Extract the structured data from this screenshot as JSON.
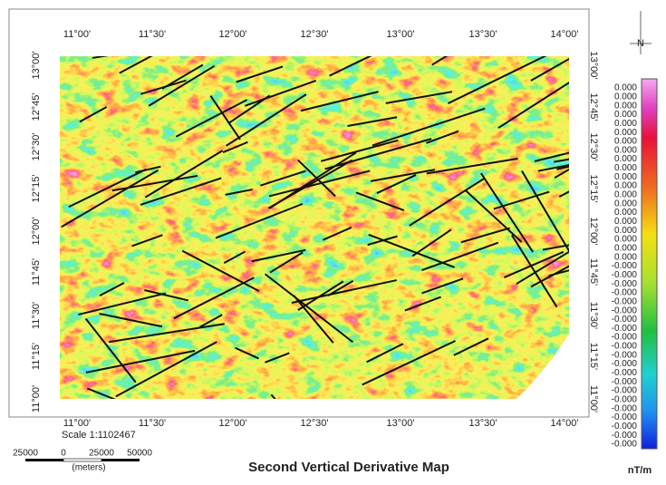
{
  "map": {
    "top_labels": [
      "11°00'",
      "11°30'",
      "12°00'",
      "12°30'",
      "13°00'",
      "13°30'",
      "14°00'"
    ],
    "bottom_labels": [
      "11°00'",
      "11°30'",
      "12°00'",
      "12°30'",
      "13°00'",
      "13°30'",
      "14°00'"
    ],
    "left_labels": [
      "13°00'",
      "12°45'",
      "12°30'",
      "12°15'",
      "12°00'",
      "11°45'",
      "11°30'",
      "11°15'",
      "11°00'"
    ],
    "right_labels": [
      "13°00'",
      "12°45'",
      "12°30'",
      "12°15'",
      "12°00'",
      "11°45'",
      "11°30'",
      "11°15'",
      "11°00'"
    ],
    "scale_text": "Scale 1:1102467",
    "scale_bar": {
      "labels": [
        "25000",
        "0",
        "25000",
        "50000"
      ],
      "unit": "(meters)"
    },
    "title": "Second Vertical Derivative Map",
    "north": "N",
    "legend": {
      "labels": [
        "0.000",
        "0.000",
        "0.000",
        "0.000",
        "0.000",
        "0.000",
        "0.000",
        "0.000",
        "0.000",
        "0.000",
        "0.000",
        "0.000",
        "0.000",
        "0.000",
        "0.000",
        "0.000",
        "0.000",
        "0.000",
        "0.000",
        "0.000",
        "-0.000",
        "-0.000",
        "-0.000",
        "-0.000",
        "-0.000",
        "-0.000",
        "-0.000",
        "-0.000",
        "-0.000",
        "-0.000",
        "-0.000",
        "-0.000",
        "-0.000",
        "-0.000",
        "-0.000",
        "-0.000",
        "-0.000",
        "-0.000",
        "-0.000",
        "-0.000",
        "-0.000"
      ],
      "unit": "nT/m"
    }
  }
}
